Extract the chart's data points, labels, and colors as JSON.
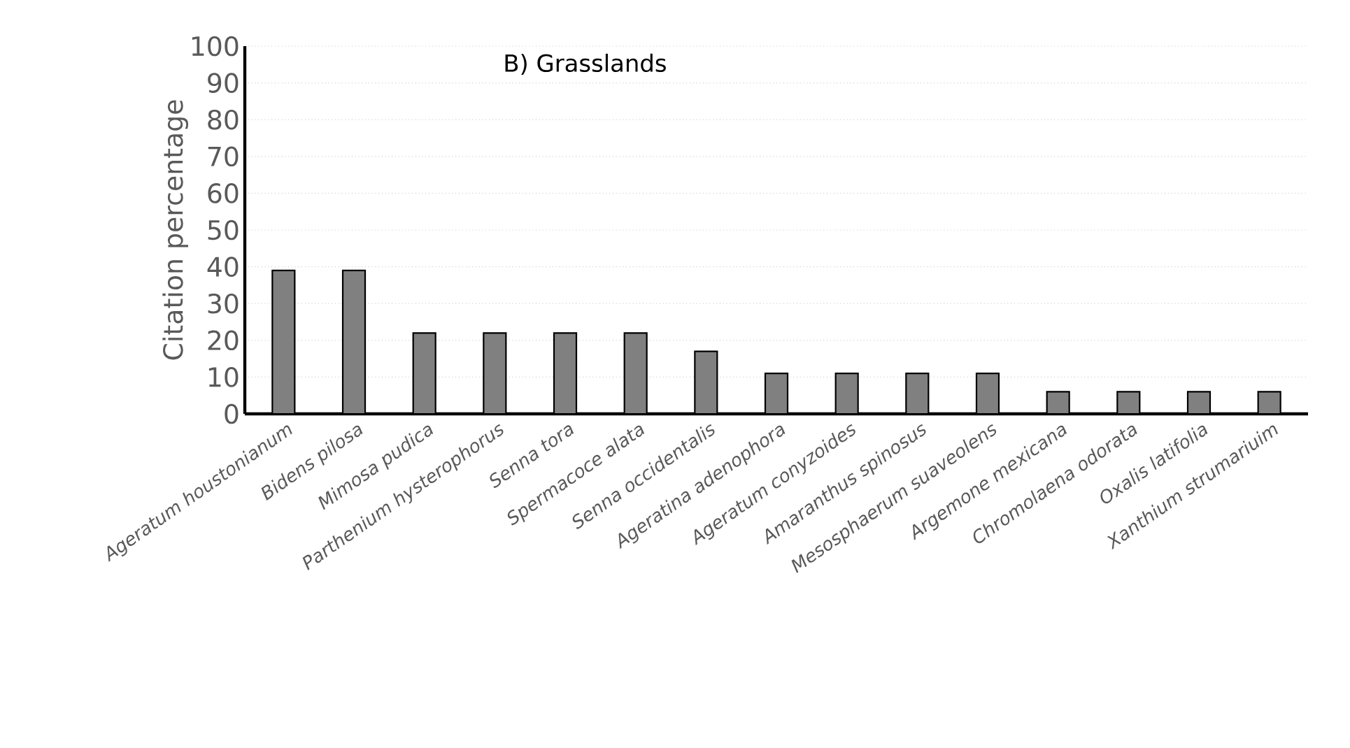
{
  "chart_data": {
    "type": "bar",
    "title": "B) Grasslands",
    "ylabel": "Citation percentage",
    "categories": [
      "Ageratum houstonianum",
      "Bidens pilosa",
      "Mimosa pudica",
      "Parthenium hysterophorus",
      "Senna tora",
      "Spermacoce alata",
      "Senna occidentalis",
      "Ageratina adenophora",
      "Ageratum conyzoides",
      "Amaranthus spinosus",
      "Mesosphaerum suaveolens",
      "Argemone mexicana",
      "Chromolaena odorata",
      "Oxalis latifolia",
      "Xanthium strumariuim"
    ],
    "values": [
      39,
      39,
      22,
      22,
      22,
      22,
      17,
      11,
      11,
      11,
      11,
      6,
      6,
      6,
      6
    ],
    "color": "#808080",
    "ylim": [
      0,
      100
    ],
    "yticks": [
      0,
      10,
      20,
      30,
      40,
      50,
      60,
      70,
      80,
      90,
      100
    ],
    "grid": "y"
  }
}
